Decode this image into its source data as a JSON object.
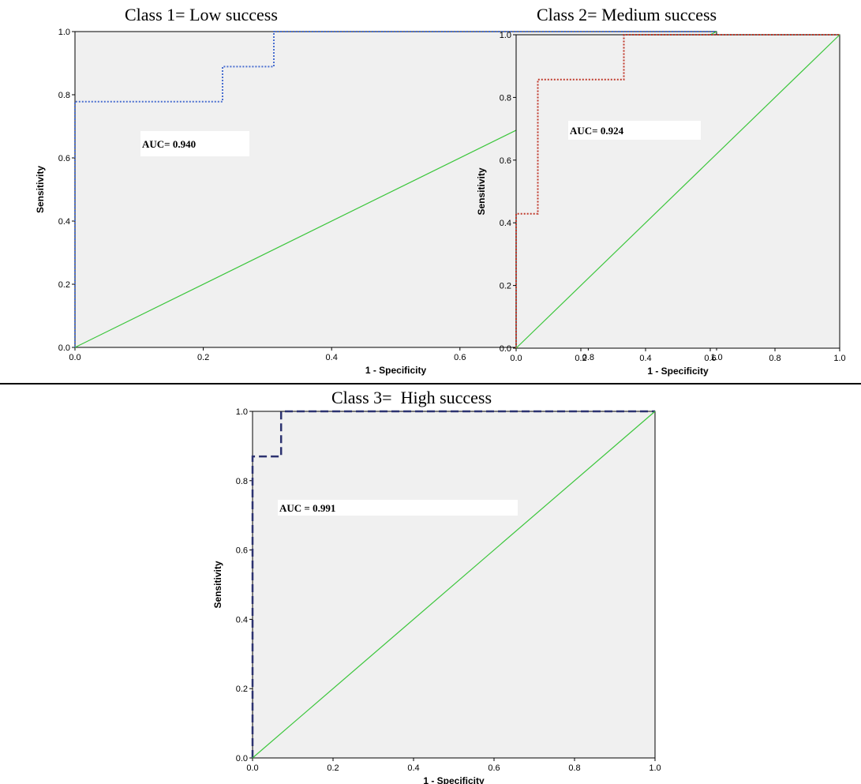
{
  "titles": {
    "panel1": "Class 1= Low success",
    "panel2": "Class 2= Medium success",
    "panel3": "Class 3=  High success"
  },
  "colors": {
    "plot_bg": "#f0f0f0",
    "diagonal": "#3cc63c",
    "axis": "#000000",
    "auc_box": "#ffffff"
  },
  "chart_data": [
    {
      "type": "line",
      "title": "Class 1= Low success",
      "xlabel": "1 - Specificity",
      "ylabel": "Sensitivity",
      "xlim": [
        0,
        1
      ],
      "ylim": [
        0,
        1
      ],
      "xticks": [
        "0.0",
        "0.2",
        "0.4",
        "0.6",
        "0.8",
        "1.0"
      ],
      "yticks": [
        "0.0",
        "0.2",
        "0.4",
        "0.6",
        "0.8",
        "1.0"
      ],
      "annotation": "AUC= 0.940",
      "series": [
        {
          "style": "dotted",
          "color": "#4a6fd0",
          "x": [
            0,
            0,
            0.23,
            0.23,
            0.31,
            0.31,
            1.0
          ],
          "y": [
            0,
            0.778,
            0.778,
            0.889,
            0.889,
            1.0,
            1.0
          ]
        },
        {
          "style": "solid",
          "color": "#3cc63c",
          "x": [
            0,
            1
          ],
          "y": [
            0,
            1
          ]
        }
      ]
    },
    {
      "type": "line",
      "title": "Class 2= Medium success",
      "xlabel": "1 - Specificity",
      "ylabel": "Sensitivity",
      "xlim": [
        0,
        1
      ],
      "ylim": [
        0,
        1
      ],
      "xticks": [
        "0.0",
        "0.2",
        "0.4",
        "0.6",
        "0.8",
        "1.0"
      ],
      "yticks": [
        "0.0",
        "0.2",
        "0.4",
        "0.6",
        "0.8",
        "1.0"
      ],
      "annotation": "AUC= 0.924",
      "series": [
        {
          "style": "dotted",
          "color": "#c0392b",
          "x": [
            0,
            0,
            0.067,
            0.067,
            0.333,
            0.333,
            1.0
          ],
          "y": [
            0,
            0.429,
            0.429,
            0.857,
            0.857,
            1.0,
            1.0
          ]
        },
        {
          "style": "solid",
          "color": "#3cc63c",
          "x": [
            0,
            1
          ],
          "y": [
            0,
            1
          ]
        }
      ]
    },
    {
      "type": "line",
      "title": "Class 3=  High success",
      "xlabel": "1 - Specificity",
      "ylabel": "Sensitivity",
      "xlim": [
        0,
        1
      ],
      "ylim": [
        0,
        1
      ],
      "xticks": [
        "0.0",
        "0.2",
        "0.4",
        "0.6",
        "0.8",
        "1.0"
      ],
      "yticks": [
        "0.0",
        "0.2",
        "0.4",
        "0.6",
        "0.8",
        "1.0"
      ],
      "annotation": "AUC = 0.991",
      "series": [
        {
          "style": "dashed",
          "color": "#2c3270",
          "x": [
            0,
            0,
            0.071,
            0.071,
            1.0
          ],
          "y": [
            0,
            0.87,
            0.87,
            1.0,
            1.0
          ]
        },
        {
          "style": "solid",
          "color": "#3cc63c",
          "x": [
            0,
            1
          ],
          "y": [
            0,
            1
          ]
        }
      ]
    }
  ]
}
